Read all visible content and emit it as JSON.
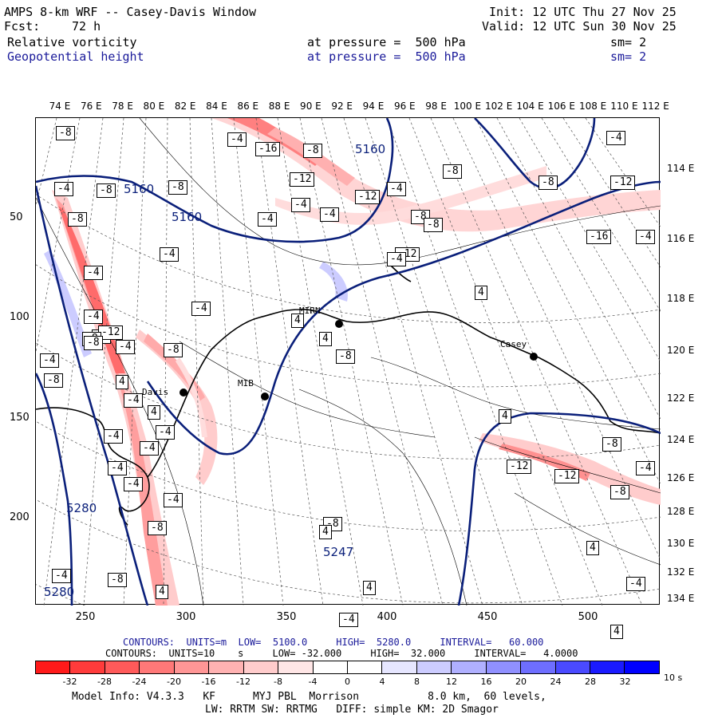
{
  "header": {
    "title": "AMPS 8-km WRF -- Casey-Davis Window",
    "init": "Init: 12 UTC Thu 27 Nov 25",
    "fcst_label": "Fcst:",
    "fcst_value": "72 h",
    "valid": "Valid: 12 UTC Sun 30 Nov 25",
    "field1": {
      "name": "Relative vorticity",
      "pressure": "at pressure =  500 hPa",
      "sm": "sm= 2"
    },
    "field2": {
      "name": "Geopotential height",
      "pressure": "at pressure =  500 hPa",
      "sm": "sm= 2"
    }
  },
  "axes": {
    "top_lon": [
      "74 E",
      "76 E",
      "78 E",
      "80 E",
      "82 E",
      "84 E",
      "86 E",
      "88 E",
      "90 E",
      "92 E",
      "94 E",
      "96 E",
      "98 E",
      "100 E",
      "102 E",
      "104 E",
      "106 E",
      "108 E",
      "110 E",
      "112 E"
    ],
    "right_lon": [
      "114 E",
      "116 E",
      "118 E",
      "120 E",
      "122 E",
      "124 E",
      "126 E",
      "128 E",
      "130 E",
      "132 E",
      "134 E"
    ],
    "left_ticks": [
      "50",
      "100",
      "150",
      "200"
    ],
    "bottom_ticks": [
      "250",
      "300",
      "350",
      "400",
      "450",
      "500"
    ]
  },
  "map": {
    "station_labels": [
      "Davis",
      "MIB",
      "MIRN",
      "Casey"
    ],
    "vorticity_labels": [
      "-8",
      "-4",
      "-16",
      "-8",
      "-12",
      "-8",
      "-4",
      "-4",
      "-12",
      "-4",
      "-8",
      "-8",
      "-4",
      "-12",
      "-4",
      "-16",
      "-8",
      "-4",
      "-4",
      "-8",
      "-8",
      "-4",
      "-4",
      "-12",
      "-4",
      "-4",
      "-4",
      "-8",
      "4",
      "-4",
      "-8",
      "4",
      "-12",
      "-8",
      "-4",
      "-8",
      "-4",
      "-8",
      "4",
      "-8",
      "4",
      "-4",
      "4",
      "-4",
      "-4",
      "-4",
      "-4",
      "-4",
      "-12",
      "-12",
      "-8",
      "-8",
      "-4",
      "-4",
      "-8",
      "-8",
      "4",
      "4",
      "4",
      "4",
      "-4",
      "-8",
      "4",
      "-4",
      "-4",
      "4"
    ],
    "height_labels": [
      "5160",
      "5160",
      "5160",
      "5280",
      "5280",
      "5247"
    ]
  },
  "legend": {
    "contours1": "CONTOURS:  UNITS=m  LOW=  5100.0     HIGH=  5280.0     INTERVAL=   60.000",
    "contours2": "CONTOURS:  UNITS=10    s     LOW= -32.000     HIGH=  32.000     INTERVAL=   4.0000",
    "colorbar_ticks": [
      "-32",
      "-28",
      "-24",
      "-20",
      "-16",
      "-12",
      "-8",
      "-4",
      "0",
      "4",
      "8",
      "12",
      "16",
      "20",
      "24",
      "28",
      "32"
    ],
    "colorbar_unit": "10    s",
    "colorbar_colors": [
      "#ff1a1a",
      "#ff3b3b",
      "#ff5a5a",
      "#ff7878",
      "#ff9696",
      "#ffb2b2",
      "#ffcccc",
      "#ffe6e6",
      "#ffffff",
      "#ffffff",
      "#e6e6ff",
      "#ccccff",
      "#b0b0ff",
      "#9090ff",
      "#6e6eff",
      "#4a4aff",
      "#1a1aff",
      "#0000ff"
    ]
  },
  "model_info": {
    "line1": "Model Info: V4.3.3   KF      MYJ PBL  Morrison           8.0 km,  60 levels,",
    "line2": "LW: RRTM SW: RRTMG   DIFF: simple KM: 2D Smagor"
  }
}
